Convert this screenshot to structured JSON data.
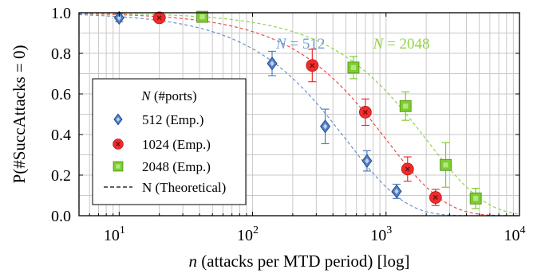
{
  "chart_data": {
    "type": "scatter",
    "x_scale": "log",
    "xlim": [
      5,
      10000
    ],
    "ylim": [
      0,
      1
    ],
    "grid": true,
    "xlabel_var": "n",
    "xlabel_rest": " (attacks per MTD period) [log]",
    "ylabel": "P(#SuccAttacks = 0)",
    "x_ticks": [
      10,
      100,
      1000,
      10000
    ],
    "x_tick_bases": [
      "10",
      "10",
      "10",
      "10"
    ],
    "x_tick_exps": [
      "1",
      "2",
      "3",
      "4"
    ],
    "y_ticks": [
      0,
      0.2,
      0.4,
      0.6,
      0.8,
      1.0
    ],
    "y_tick_labels": [
      "0.0",
      "0.2",
      "0.4",
      "0.6",
      "0.8",
      "1.0"
    ],
    "legend": {
      "placement": "lower-left",
      "title_var": "N",
      "title_rest": " (#ports)",
      "entries": [
        "512 (Emp.)",
        "1024 (Emp.)",
        "2048 (Emp.)",
        "N (Theoretical)"
      ]
    },
    "annotations": [
      {
        "var": "N",
        "eq": " = 512",
        "x": 150,
        "y": 0.95,
        "color": "#6f9bd1"
      },
      {
        "var": "N",
        "eq": " = 2048",
        "x": 800,
        "y": 0.95,
        "color": "#8fd43c"
      }
    ],
    "series": [
      {
        "name": "512 (Emp.)",
        "N": 512,
        "marker": "diamond",
        "color": "#4f7fc4",
        "points": [
          {
            "x": 10,
            "y": 0.975,
            "err": 0.02
          },
          {
            "x": 140,
            "y": 0.75,
            "err": 0.06
          },
          {
            "x": 350,
            "y": 0.44,
            "err": 0.085
          },
          {
            "x": 720,
            "y": 0.27,
            "err": 0.05
          },
          {
            "x": 1200,
            "y": 0.12,
            "err": 0.035
          }
        ]
      },
      {
        "name": "1024 (Emp.)",
        "N": 1024,
        "marker": "circle",
        "color": "#ee2c2c",
        "points": [
          {
            "x": 20,
            "y": 0.975,
            "err": 0.012
          },
          {
            "x": 280,
            "y": 0.74,
            "err": 0.08
          },
          {
            "x": 700,
            "y": 0.51,
            "err": 0.065
          },
          {
            "x": 1450,
            "y": 0.23,
            "err": 0.06
          },
          {
            "x": 2350,
            "y": 0.09,
            "err": 0.04
          }
        ]
      },
      {
        "name": "2048 (Emp.)",
        "N": 2048,
        "marker": "square",
        "color": "#7ccd2e",
        "points": [
          {
            "x": 42,
            "y": 0.98,
            "err": 0.012
          },
          {
            "x": 570,
            "y": 0.73,
            "err": 0.055
          },
          {
            "x": 1400,
            "y": 0.54,
            "err": 0.07
          },
          {
            "x": 2800,
            "y": 0.25,
            "err": 0.11
          },
          {
            "x": 4700,
            "y": 0.085,
            "err": 0.05
          }
        ]
      }
    ]
  }
}
